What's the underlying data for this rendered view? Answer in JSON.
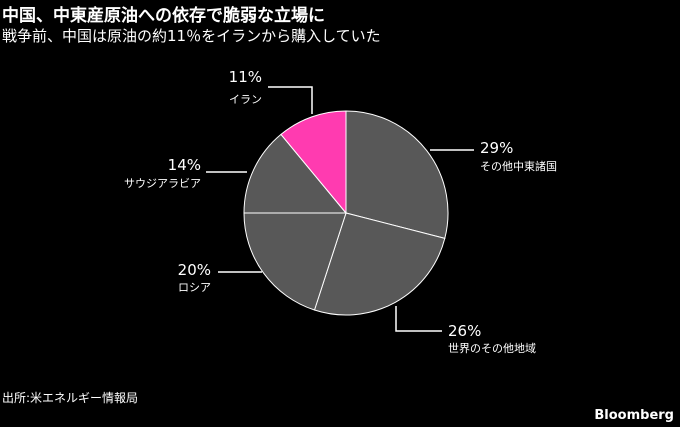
{
  "title": "中国、中東産原油への依存で脆弱な立場に",
  "subtitle": "戦争前、中国は原油の約11％をイランから購入していた",
  "source": "出所:米エネルギー情報局",
  "brand": "Bloomberg",
  "chart_data": {
    "type": "pie",
    "title": "中国、中東産原油への依存で脆弱な立場に",
    "subtitle": "戦争前、中国は原油の約11％をイランから購入していた",
    "slices": [
      {
        "label": "その他中東諸国",
        "value": 29,
        "value_label": "29%",
        "color": "#585858"
      },
      {
        "label": "世界のその他地域",
        "value": 26,
        "value_label": "26%",
        "color": "#585858"
      },
      {
        "label": "ロシア",
        "value": 20,
        "value_label": "20%",
        "color": "#585858"
      },
      {
        "label": "サウジアラビア",
        "value": 14,
        "value_label": "14%",
        "color": "#585858"
      },
      {
        "label": "イラン",
        "value": 11,
        "value_label": "11%",
        "color": "#ff3bb0"
      }
    ],
    "start": "12 o'clock",
    "direction": "clockwise",
    "slice_edge_color": "#ffffff"
  }
}
